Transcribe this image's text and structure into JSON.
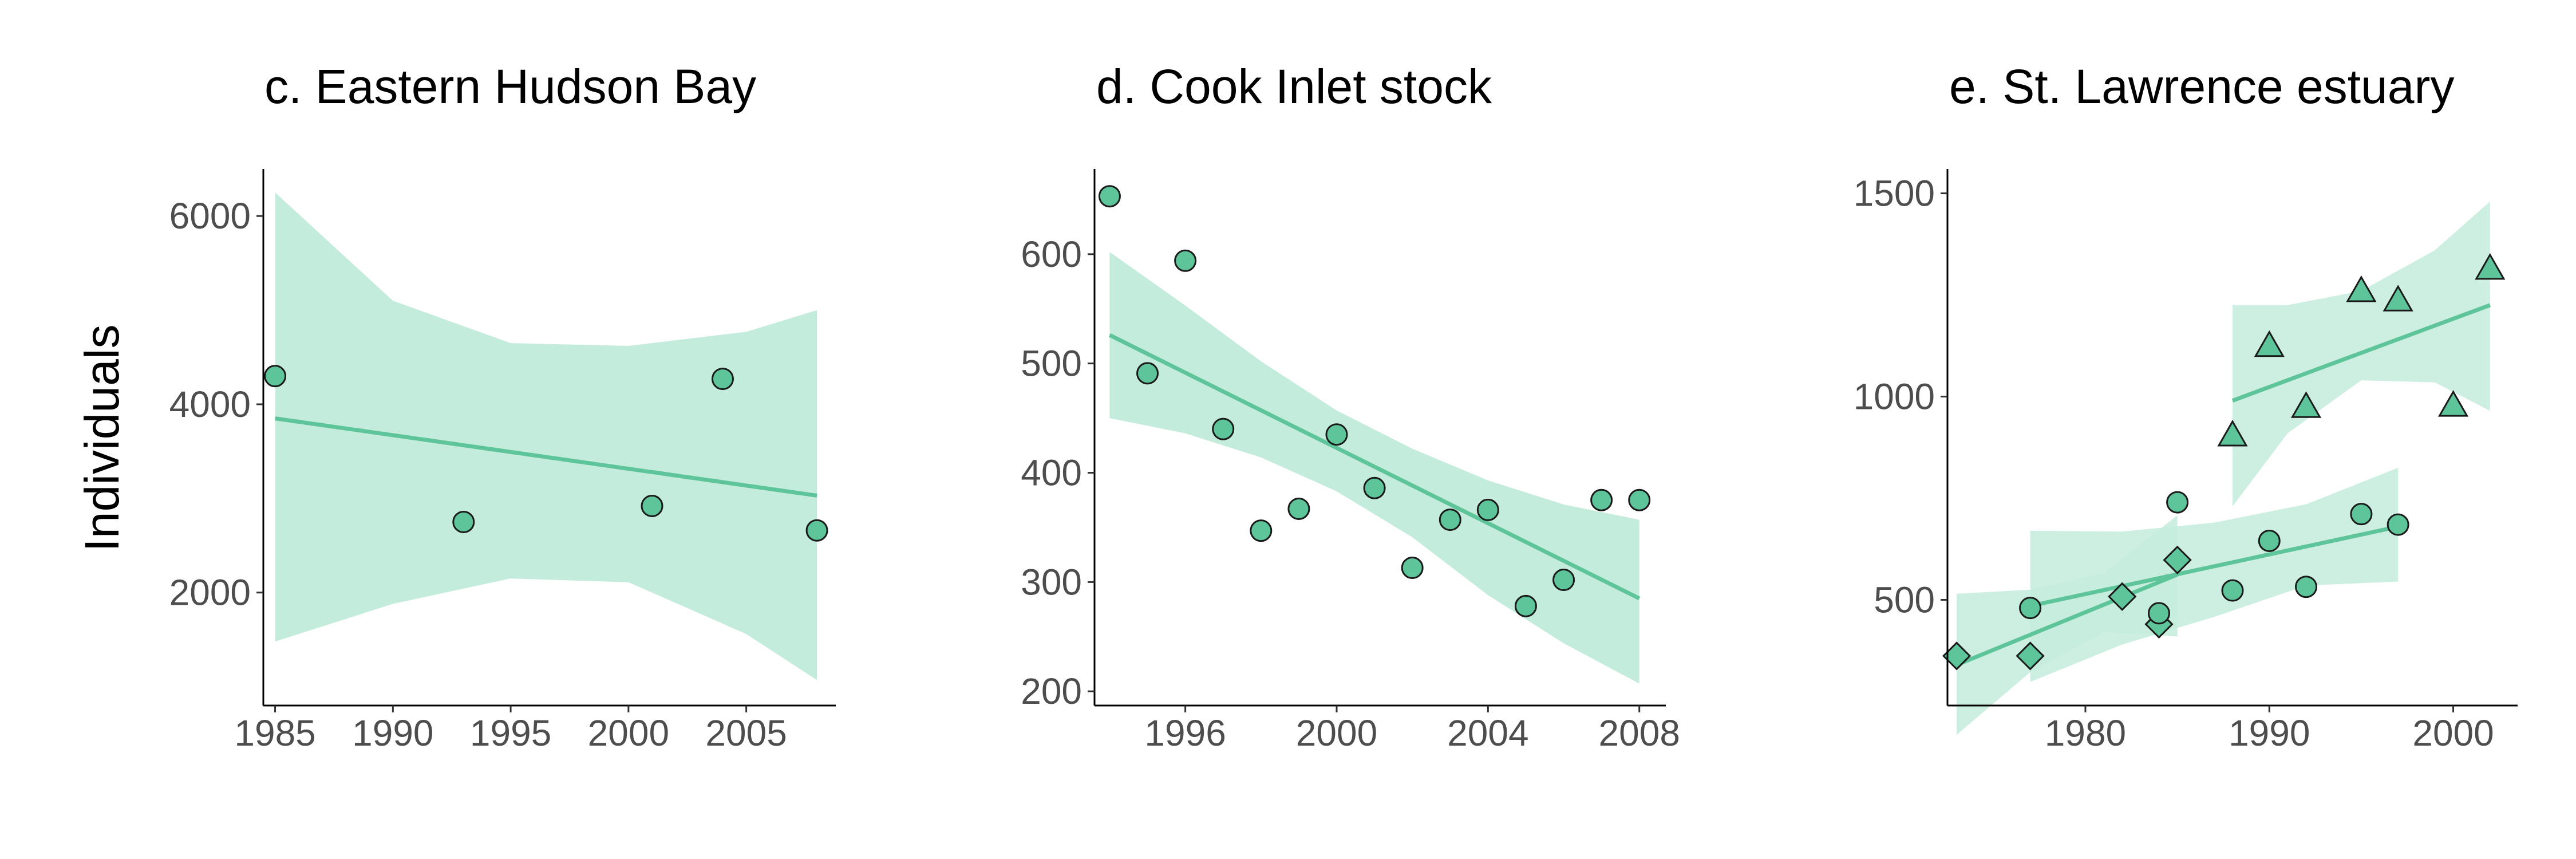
{
  "figure": {
    "ylabel": "Individuals",
    "colors": {
      "fill": "#5ec49a",
      "line": "#5ec49a",
      "ribbon": "#c4ecdc",
      "point_edge": "#1a1a1a"
    }
  },
  "chart_data": [
    {
      "type": "scatter",
      "title": "c. Eastern Hudson Bay",
      "xlabel": "",
      "ylabel": "Individuals",
      "xlim": [
        1984.5,
        2008.8
      ],
      "ylim": [
        800,
        6500
      ],
      "xticks": [
        1985,
        1990,
        1995,
        2000,
        2005
      ],
      "yticks": [
        2000,
        4000,
        6000
      ],
      "grid": false,
      "legend": "none",
      "series": [
        {
          "marker": "circle",
          "x": [
            1985,
            1993,
            2001,
            2004,
            2008
          ],
          "y": [
            4300,
            2750,
            2920,
            4270,
            2660
          ],
          "trend": {
            "x": [
              1985,
              2008
            ],
            "y": [
              3850,
              3030
            ]
          },
          "ribbon": {
            "x": [
              1985,
              1990,
              1995,
              2000,
              2005,
              2008
            ],
            "upper": [
              6250,
              5100,
              4650,
              4620,
              4770,
              5000
            ],
            "lower": [
              1480,
              1880,
              2150,
              2110,
              1560,
              1070
            ]
          }
        }
      ]
    },
    {
      "type": "scatter",
      "title": "d. Cook Inlet stock",
      "xlabel": "",
      "ylabel": "",
      "xlim": [
        1993.6,
        2008.7
      ],
      "ylim": [
        187,
        678
      ],
      "xticks": [
        1996,
        2000,
        2004,
        2008
      ],
      "yticks": [
        200,
        300,
        400,
        500,
        600
      ],
      "grid": false,
      "legend": "none",
      "series": [
        {
          "marker": "circle",
          "x": [
            1994,
            1995,
            1996,
            1997,
            1998,
            1999,
            2000,
            2001,
            2002,
            2003,
            2004,
            2005,
            2006,
            2007,
            2008
          ],
          "y": [
            653,
            491,
            594,
            440,
            347,
            367,
            435,
            386,
            313,
            357,
            366,
            278,
            302,
            375,
            375
          ],
          "trend": {
            "x": [
              1994,
              2008
            ],
            "y": [
              526,
              285
            ]
          },
          "ribbon": {
            "x": [
              1994,
              1996,
              1998,
              2000,
              2002,
              2004,
              2006,
              2008
            ],
            "upper": [
              602,
              553,
              502,
              457,
              422,
              393,
              371,
              357
            ],
            "lower": [
              450,
              436,
              414,
              383,
              341,
              288,
              244,
              207
            ]
          }
        }
      ]
    },
    {
      "type": "scatter",
      "title": "e. St. Lawrence estuary",
      "xlabel": "",
      "ylabel": "",
      "xlim": [
        1972.5,
        2003.5
      ],
      "ylim": [
        240,
        1560
      ],
      "xticks": [
        1980,
        1990,
        2000
      ],
      "yticks": [
        500,
        1000,
        1500
      ],
      "grid": false,
      "legend": "none",
      "series": [
        {
          "marker": "diamond",
          "x": [
            1973,
            1977,
            1982,
            1984,
            1985
          ],
          "y": [
            362,
            362,
            508,
            440,
            598
          ],
          "trend": {
            "x": [
              1973,
              1985
            ],
            "y": [
              340,
              562
            ]
          },
          "ribbon": {
            "x": [
              1973,
              1977,
              1981,
              1985
            ],
            "upper": [
              515,
              525,
              565,
              708
            ],
            "lower": [
              168,
              322,
              420,
              410
            ]
          }
        },
        {
          "marker": "circle",
          "x": [
            1977,
            1984,
            1985,
            1988,
            1990,
            1992,
            1995,
            1997
          ],
          "y": [
            480,
            467,
            740,
            523,
            645,
            532,
            711,
            685
          ],
          "trend": {
            "x": [
              1977,
              1997
            ],
            "y": [
              485,
              680
            ]
          },
          "ribbon": {
            "x": [
              1977,
              1982,
              1987,
              1992,
              1997
            ],
            "upper": [
              670,
              668,
              690,
              735,
              825
            ],
            "lower": [
              298,
              390,
              458,
              535,
              545
            ]
          }
        },
        {
          "marker": "triangle",
          "x": [
            1988,
            1990,
            1992,
            1995,
            1997,
            2000,
            2002
          ],
          "y": [
            905,
            1125,
            975,
            1260,
            1237,
            978,
            1315
          ],
          "trend": {
            "x": [
              1988,
              2002
            ],
            "y": [
              990,
              1225
            ]
          },
          "ribbon": {
            "x": [
              1988,
              1991,
              1995,
              1999,
              2002
            ],
            "upper": [
              1225,
              1225,
              1260,
              1360,
              1480
            ],
            "lower": [
              730,
              910,
              1040,
              1035,
              965
            ]
          }
        }
      ]
    }
  ]
}
